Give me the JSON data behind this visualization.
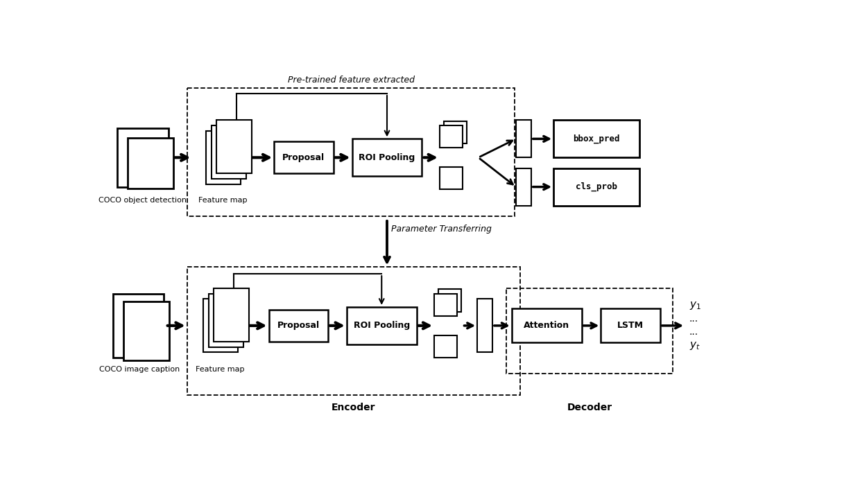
{
  "bg_color": "#ffffff",
  "top_label": "Pre-trained feature extracted",
  "mid_label": "Parameter Transferring",
  "bottom_labels": [
    "Encoder",
    "Decoder"
  ],
  "top_row": {
    "coco_label": "COCO object detection",
    "feature_map_label": "Feature map",
    "proposal_label": "Proposal",
    "roi_label": "ROI Pooling",
    "bbox_label": "bbox_pred",
    "cls_label": "cls_prob"
  },
  "bottom_row": {
    "coco_label": "COCO image caption",
    "feature_map_label": "Feature map",
    "proposal_label": "Proposal",
    "roi_label": "ROI Pooling",
    "attention_label": "Attention",
    "lstm_label": "LSTM",
    "y1": "y",
    "yt": "y",
    "y1_sub": "1",
    "yt_sub": "t"
  }
}
